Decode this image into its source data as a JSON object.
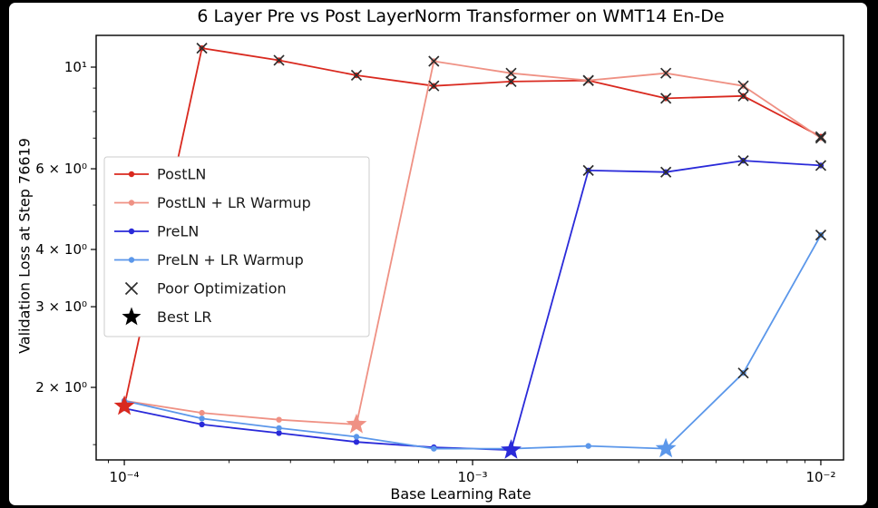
{
  "chart_data": {
    "type": "line",
    "title": "6 Layer Pre vs Post LayerNorm Transformer on WMT14 En-De",
    "xlabel": "Base Learning Rate",
    "ylabel": "Validation Loss at Step 76619",
    "x_scale": "log",
    "y_scale": "log",
    "xlim": [
      8.3e-05,
      0.01162
    ],
    "ylim": [
      1.389,
      11.73
    ],
    "x_ticks": [
      {
        "v": 0.0001,
        "label": "10⁻⁴"
      },
      {
        "v": 0.001,
        "label": "10⁻³"
      },
      {
        "v": 0.01,
        "label": "10⁻²"
      }
    ],
    "y_ticks": [
      {
        "v": 2,
        "label": "2 × 10⁰"
      },
      {
        "v": 3,
        "label": "3 × 10⁰"
      },
      {
        "v": 4,
        "label": "4 × 10⁰"
      },
      {
        "v": 6,
        "label": "6 × 10⁰"
      },
      {
        "v": 10,
        "label": "10¹"
      }
    ],
    "y_minor": [
      1.5,
      5,
      7,
      8,
      9
    ],
    "x": [
      0.0001,
      0.000167,
      0.000278,
      0.000464,
      0.000774,
      0.00129,
      0.00215,
      0.00359,
      0.00599,
      0.01
    ],
    "series": [
      {
        "name": "PostLN",
        "color": "#d9291f",
        "values": [
          1.82,
          11.0,
          10.35,
          9.6,
          9.1,
          9.3,
          9.35,
          8.55,
          8.65,
          7.05
        ],
        "poor_optimization_idx": [
          1,
          2,
          3,
          4,
          5,
          6,
          7,
          8,
          9
        ],
        "best_lr_idx": 0
      },
      {
        "name": "PostLN + LR Warmup",
        "color": "#ef9184",
        "values": [
          1.87,
          1.76,
          1.7,
          1.66,
          10.3,
          9.7,
          9.35,
          9.7,
          9.1,
          7.0
        ],
        "poor_optimization_idx": [
          4,
          5,
          6,
          7,
          8,
          9
        ],
        "best_lr_idx": 3
      },
      {
        "name": "PreLN",
        "color": "#2a2ad9",
        "values": [
          1.8,
          1.66,
          1.59,
          1.52,
          1.48,
          1.46,
          5.95,
          5.9,
          6.25,
          6.1
        ],
        "poor_optimization_idx": [
          6,
          7,
          8,
          9
        ],
        "best_lr_idx": 5
      },
      {
        "name": "PreLN + LR Warmup",
        "color": "#5b97ea",
        "values": [
          1.87,
          1.71,
          1.63,
          1.56,
          1.47,
          1.47,
          1.49,
          1.47,
          2.15,
          4.3
        ],
        "poor_optimization_idx": [
          8,
          9
        ],
        "best_lr_idx": 7
      }
    ],
    "legend_extra": [
      {
        "label": "Poor Optimization",
        "marker": "x"
      },
      {
        "label": "Best LR",
        "marker": "star"
      }
    ],
    "legend_position": "center left",
    "marker_colors": {
      "poor_optimization": "#2d2d2d",
      "best_lr_legend": "#000000"
    }
  }
}
